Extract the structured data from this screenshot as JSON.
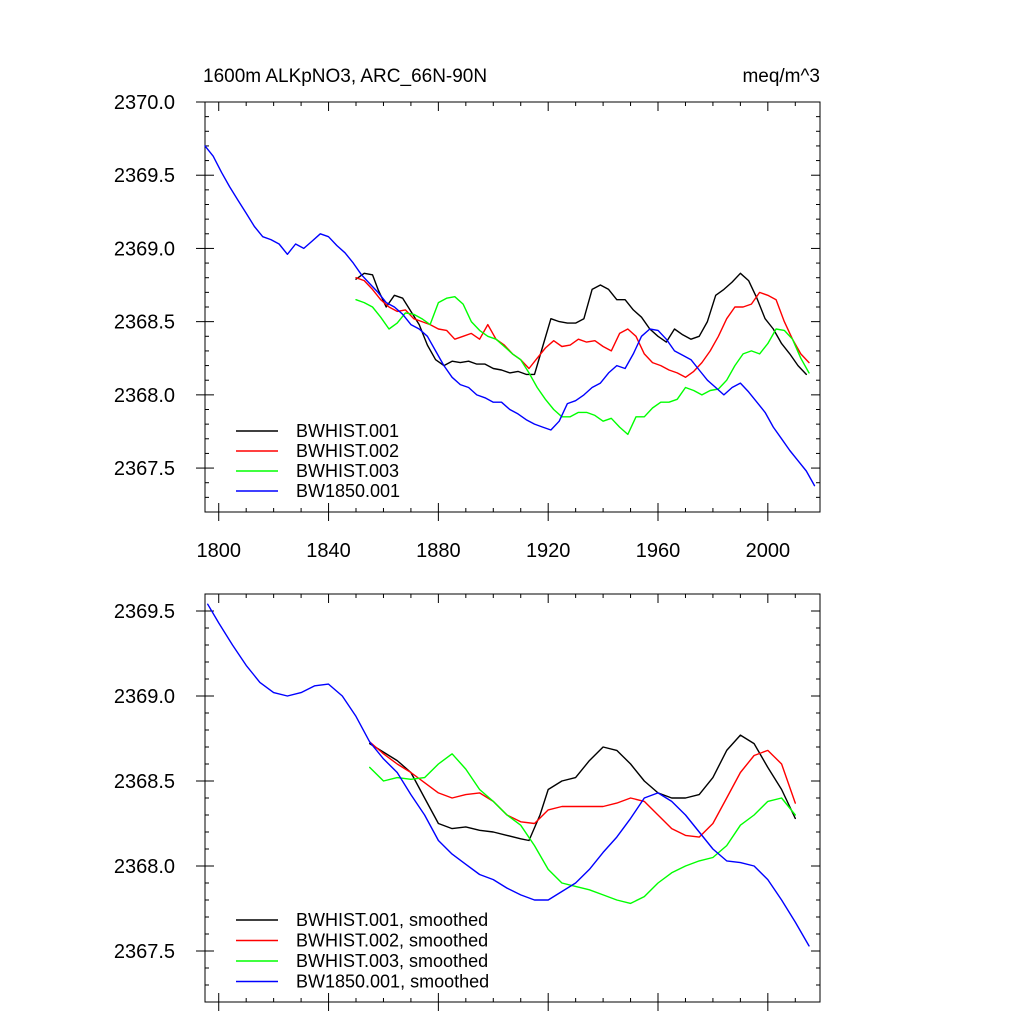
{
  "chart_data": [
    {
      "type": "line",
      "title": "1600m ALKpNO3, ARC_66N-90N",
      "units": "meq/m^3",
      "xlim": [
        1795,
        2019
      ],
      "ylim": [
        2367.2,
        2370.0
      ],
      "xticks": [
        1800,
        1840,
        1880,
        1920,
        1960,
        2000
      ],
      "yticks": [
        2367.5,
        2368.0,
        2368.5,
        2369.0,
        2369.5,
        2370.0
      ],
      "ytick_labels": [
        "2367.5",
        "2368.0",
        "2368.5",
        "2369.0",
        "2369.5",
        "2370.0"
      ],
      "legend_position": "bottom-left",
      "series": [
        {
          "name": "BWHIST.001",
          "color": "#000000",
          "x": [
            1850,
            1853,
            1856,
            1858,
            1861,
            1864,
            1867,
            1870,
            1873,
            1876,
            1879,
            1882,
            1885,
            1888,
            1891,
            1894,
            1897,
            1900,
            1903,
            1906,
            1909,
            1912,
            1915,
            1918,
            1921,
            1924,
            1927,
            1930,
            1933,
            1936,
            1939,
            1942,
            1945,
            1948,
            1951,
            1954,
            1957,
            1960,
            1963,
            1966,
            1969,
            1972,
            1975,
            1978,
            1981,
            1984,
            1987,
            1990,
            1993,
            1996,
            1999,
            2002,
            2005,
            2008,
            2011,
            2014
          ],
          "y": [
            2368.79,
            2368.83,
            2368.82,
            2368.72,
            2368.6,
            2368.68,
            2368.66,
            2368.57,
            2368.48,
            2368.34,
            2368.24,
            2368.2,
            2368.23,
            2368.22,
            2368.23,
            2368.21,
            2368.21,
            2368.18,
            2368.17,
            2368.15,
            2368.16,
            2368.14,
            2368.14,
            2368.33,
            2368.52,
            2368.5,
            2368.49,
            2368.49,
            2368.52,
            2368.72,
            2368.75,
            2368.72,
            2368.65,
            2368.65,
            2368.58,
            2368.53,
            2368.45,
            2368.4,
            2368.36,
            2368.45,
            2368.41,
            2368.38,
            2368.4,
            2368.5,
            2368.68,
            2368.72,
            2368.77,
            2368.83,
            2368.78,
            2368.66,
            2368.52,
            2368.45,
            2368.35,
            2368.28,
            2368.2,
            2368.14
          ]
        },
        {
          "name": "BWHIST.002",
          "color": "#ff0000",
          "x": [
            1850,
            1853,
            1856,
            1859,
            1862,
            1865,
            1868,
            1871,
            1874,
            1877,
            1880,
            1883,
            1886,
            1889,
            1892,
            1895,
            1898,
            1901,
            1904,
            1907,
            1910,
            1913,
            1916,
            1919,
            1922,
            1925,
            1928,
            1931,
            1934,
            1937,
            1940,
            1943,
            1946,
            1949,
            1952,
            1955,
            1958,
            1961,
            1964,
            1967,
            1970,
            1973,
            1976,
            1979,
            1982,
            1985,
            1988,
            1991,
            1994,
            1997,
            2000,
            2003,
            2006,
            2009,
            2012,
            2015
          ],
          "y": [
            2368.8,
            2368.78,
            2368.72,
            2368.65,
            2368.6,
            2368.57,
            2368.58,
            2368.52,
            2368.5,
            2368.48,
            2368.45,
            2368.44,
            2368.38,
            2368.4,
            2368.42,
            2368.38,
            2368.48,
            2368.38,
            2368.34,
            2368.28,
            2368.24,
            2368.18,
            2368.25,
            2368.32,
            2368.37,
            2368.33,
            2368.34,
            2368.38,
            2368.36,
            2368.37,
            2368.33,
            2368.3,
            2368.42,
            2368.45,
            2368.4,
            2368.28,
            2368.22,
            2368.2,
            2368.17,
            2368.15,
            2368.12,
            2368.16,
            2368.22,
            2368.3,
            2368.4,
            2368.52,
            2368.6,
            2368.6,
            2368.62,
            2368.7,
            2368.68,
            2368.65,
            2368.5,
            2368.38,
            2368.28,
            2368.22
          ]
        },
        {
          "name": "BWHIST.003",
          "color": "#00ff00",
          "x": [
            1850,
            1853,
            1856,
            1859,
            1862,
            1865,
            1868,
            1871,
            1874,
            1877,
            1880,
            1883,
            1886,
            1889,
            1892,
            1895,
            1898,
            1901,
            1904,
            1907,
            1910,
            1913,
            1916,
            1919,
            1922,
            1925,
            1928,
            1931,
            1934,
            1937,
            1940,
            1943,
            1946,
            1949,
            1952,
            1955,
            1958,
            1961,
            1964,
            1967,
            1970,
            1973,
            1976,
            1979,
            1982,
            1985,
            1988,
            1991,
            1994,
            1997,
            2000,
            2003,
            2006,
            2009,
            2012,
            2015
          ],
          "y": [
            2368.65,
            2368.63,
            2368.6,
            2368.53,
            2368.45,
            2368.49,
            2368.56,
            2368.55,
            2368.52,
            2368.48,
            2368.63,
            2368.66,
            2368.67,
            2368.62,
            2368.5,
            2368.44,
            2368.4,
            2368.38,
            2368.33,
            2368.28,
            2368.24,
            2368.15,
            2368.05,
            2367.97,
            2367.9,
            2367.85,
            2367.85,
            2367.88,
            2367.88,
            2367.86,
            2367.82,
            2367.84,
            2367.78,
            2367.73,
            2367.85,
            2367.85,
            2367.91,
            2367.95,
            2367.95,
            2367.97,
            2368.05,
            2368.03,
            2368.0,
            2368.03,
            2368.04,
            2368.1,
            2368.2,
            2368.28,
            2368.3,
            2368.28,
            2368.35,
            2368.45,
            2368.44,
            2368.38,
            2368.25,
            2368.15
          ]
        },
        {
          "name": "BW1850.001",
          "color": "#0000ff",
          "x": [
            1795,
            1798,
            1801,
            1804,
            1807,
            1810,
            1813,
            1816,
            1819,
            1822,
            1825,
            1828,
            1831,
            1834,
            1837,
            1840,
            1843,
            1846,
            1849,
            1852,
            1855,
            1858,
            1861,
            1864,
            1867,
            1870,
            1873,
            1876,
            1879,
            1882,
            1885,
            1888,
            1891,
            1894,
            1897,
            1900,
            1903,
            1906,
            1909,
            1912,
            1915,
            1918,
            1921,
            1924,
            1927,
            1930,
            1933,
            1936,
            1939,
            1942,
            1945,
            1948,
            1951,
            1954,
            1957,
            1960,
            1963,
            1966,
            1969,
            1972,
            1975,
            1978,
            1981,
            1984,
            1987,
            1990,
            1993,
            1996,
            1999,
            2002,
            2005,
            2008,
            2011,
            2014,
            2017
          ],
          "y": [
            2369.7,
            2369.63,
            2369.52,
            2369.42,
            2369.33,
            2369.24,
            2369.15,
            2369.08,
            2369.06,
            2369.03,
            2368.96,
            2369.03,
            2369.0,
            2369.05,
            2369.1,
            2369.08,
            2369.02,
            2368.97,
            2368.9,
            2368.82,
            2368.76,
            2368.7,
            2368.63,
            2368.6,
            2368.55,
            2368.48,
            2368.45,
            2368.4,
            2368.3,
            2368.2,
            2368.12,
            2368.07,
            2368.05,
            2368.0,
            2367.98,
            2367.95,
            2367.95,
            2367.9,
            2367.87,
            2367.83,
            2367.8,
            2367.78,
            2367.76,
            2367.82,
            2367.94,
            2367.96,
            2368.0,
            2368.05,
            2368.08,
            2368.15,
            2368.2,
            2368.18,
            2368.28,
            2368.4,
            2368.45,
            2368.44,
            2368.38,
            2368.3,
            2368.27,
            2368.24,
            2368.17,
            2368.1,
            2368.05,
            2368.0,
            2368.05,
            2368.08,
            2368.02,
            2367.95,
            2367.88,
            2367.78,
            2367.7,
            2367.62,
            2367.55,
            2367.48,
            2367.38
          ]
        }
      ]
    },
    {
      "type": "line",
      "xlim": [
        1795,
        2019
      ],
      "ylim": [
        2367.2,
        2369.6
      ],
      "xticks": [
        1800,
        1840,
        1880,
        1920,
        1960,
        2000
      ],
      "yticks": [
        2367.5,
        2368.0,
        2368.5,
        2369.0,
        2369.5
      ],
      "ytick_labels": [
        "2367.5",
        "2368.0",
        "2368.5",
        "2369.0",
        "2369.5"
      ],
      "legend_position": "bottom-left",
      "series": [
        {
          "name": "BWHIST.001, smoothed",
          "color": "#000000",
          "x": [
            1855,
            1860,
            1865,
            1870,
            1875,
            1880,
            1885,
            1890,
            1895,
            1900,
            1905,
            1910,
            1913,
            1917,
            1920,
            1925,
            1930,
            1935,
            1940,
            1945,
            1950,
            1955,
            1960,
            1965,
            1970,
            1975,
            1980,
            1985,
            1990,
            1995,
            2000,
            2005,
            2010
          ],
          "y": [
            2368.72,
            2368.67,
            2368.62,
            2368.55,
            2368.4,
            2368.25,
            2368.22,
            2368.23,
            2368.21,
            2368.2,
            2368.18,
            2368.16,
            2368.15,
            2368.3,
            2368.45,
            2368.5,
            2368.52,
            2368.62,
            2368.7,
            2368.68,
            2368.6,
            2368.5,
            2368.43,
            2368.4,
            2368.4,
            2368.42,
            2368.52,
            2368.68,
            2368.77,
            2368.72,
            2368.58,
            2368.45,
            2368.28
          ]
        },
        {
          "name": "BWHIST.002, smoothed",
          "color": "#ff0000",
          "x": [
            1855,
            1860,
            1865,
            1870,
            1875,
            1880,
            1885,
            1890,
            1895,
            1900,
            1905,
            1910,
            1915,
            1920,
            1925,
            1930,
            1935,
            1940,
            1945,
            1950,
            1955,
            1960,
            1965,
            1970,
            1975,
            1980,
            1985,
            1990,
            1995,
            2000,
            2005,
            2010
          ],
          "y": [
            2368.73,
            2368.66,
            2368.6,
            2368.55,
            2368.49,
            2368.43,
            2368.4,
            2368.42,
            2368.43,
            2368.38,
            2368.3,
            2368.26,
            2368.25,
            2368.33,
            2368.35,
            2368.35,
            2368.35,
            2368.35,
            2368.37,
            2368.4,
            2368.38,
            2368.3,
            2368.22,
            2368.18,
            2368.17,
            2368.25,
            2368.4,
            2368.55,
            2368.65,
            2368.68,
            2368.6,
            2368.37
          ]
        },
        {
          "name": "BWHIST.003, smoothed",
          "color": "#00ff00",
          "x": [
            1855,
            1860,
            1865,
            1870,
            1875,
            1880,
            1885,
            1890,
            1895,
            1900,
            1905,
            1910,
            1915,
            1920,
            1925,
            1930,
            1935,
            1940,
            1945,
            1950,
            1955,
            1960,
            1965,
            1970,
            1975,
            1980,
            1985,
            1990,
            1995,
            2000,
            2005,
            2010
          ],
          "y": [
            2368.58,
            2368.5,
            2368.52,
            2368.51,
            2368.52,
            2368.6,
            2368.66,
            2368.57,
            2368.45,
            2368.38,
            2368.3,
            2368.24,
            2368.12,
            2367.98,
            2367.9,
            2367.88,
            2367.86,
            2367.83,
            2367.8,
            2367.78,
            2367.82,
            2367.9,
            2367.96,
            2368.0,
            2368.03,
            2368.05,
            2368.12,
            2368.24,
            2368.3,
            2368.38,
            2368.4,
            2368.3
          ]
        },
        {
          "name": "BW1850.001, smoothed",
          "color": "#0000ff",
          "x": [
            1796,
            1800,
            1805,
            1810,
            1815,
            1820,
            1825,
            1830,
            1835,
            1840,
            1845,
            1850,
            1855,
            1860,
            1865,
            1870,
            1875,
            1880,
            1885,
            1890,
            1895,
            1900,
            1905,
            1910,
            1915,
            1920,
            1925,
            1930,
            1935,
            1940,
            1945,
            1950,
            1955,
            1960,
            1965,
            1970,
            1975,
            1980,
            1985,
            1990,
            1995,
            2000,
            2005,
            2010,
            2015
          ],
          "y": [
            2369.54,
            2369.43,
            2369.3,
            2369.18,
            2369.08,
            2369.02,
            2369.0,
            2369.02,
            2369.06,
            2369.07,
            2369.0,
            2368.88,
            2368.73,
            2368.63,
            2368.55,
            2368.42,
            2368.3,
            2368.15,
            2368.07,
            2368.01,
            2367.95,
            2367.92,
            2367.87,
            2367.83,
            2367.8,
            2367.8,
            2367.85,
            2367.9,
            2367.98,
            2368.08,
            2368.17,
            2368.28,
            2368.4,
            2368.43,
            2368.38,
            2368.3,
            2368.2,
            2368.1,
            2368.03,
            2368.02,
            2368.0,
            2367.92,
            2367.8,
            2367.67,
            2367.53
          ]
        }
      ]
    }
  ]
}
